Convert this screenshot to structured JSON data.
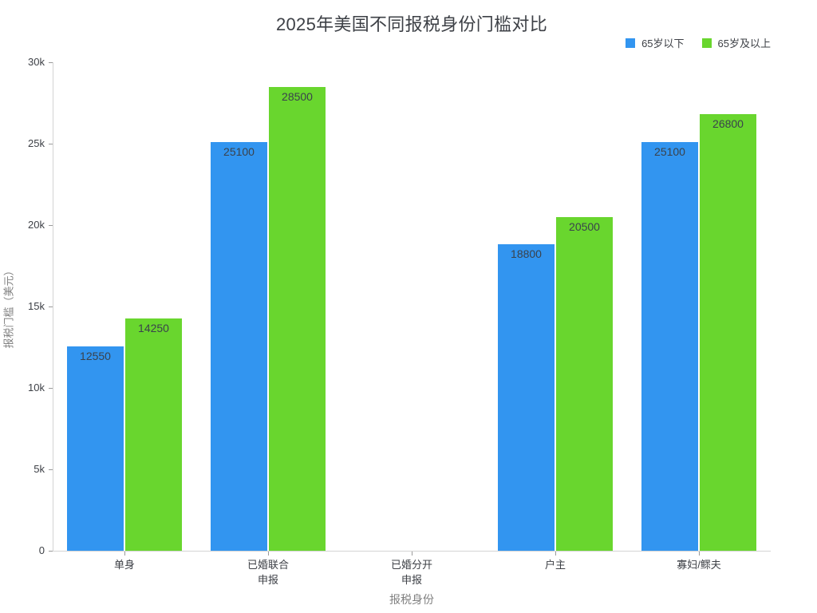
{
  "chart_data": {
    "type": "bar",
    "title": "2025年美国不同报税身份门槛对比",
    "xlabel": "报税身份",
    "ylabel": "报税门槛（美元）",
    "categories": [
      "单身",
      "已婚联合\n申报",
      "已婚分开\n申报",
      "户主",
      "寡妇/鳏夫"
    ],
    "series": [
      {
        "key": "under-65",
        "name": "65岁以下",
        "color": "#3295f0",
        "values": [
          12550,
          25100,
          null,
          18800,
          25100
        ]
      },
      {
        "key": "65-plus",
        "name": "65岁及以上",
        "color": "#69d62e",
        "values": [
          14250,
          28500,
          null,
          20500,
          26800
        ]
      }
    ],
    "ylim": [
      0,
      30000
    ],
    "yticks": [
      {
        "value": 0,
        "label": "0"
      },
      {
        "value": 5000,
        "label": "5k"
      },
      {
        "value": 10000,
        "label": "10k"
      },
      {
        "value": 15000,
        "label": "15k"
      },
      {
        "value": 20000,
        "label": "20k"
      },
      {
        "value": 25000,
        "label": "25k"
      },
      {
        "value": 30000,
        "label": "30k"
      }
    ],
    "grid": false,
    "bar_value_labels": true,
    "legend_position": "top-right"
  }
}
